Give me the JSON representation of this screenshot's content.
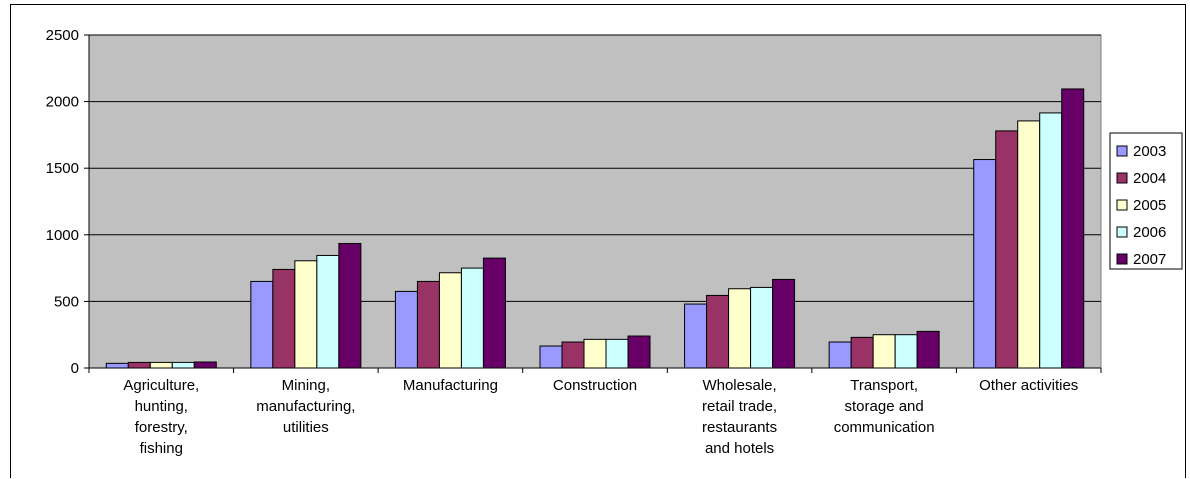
{
  "chart_data": {
    "type": "bar",
    "title": "",
    "xlabel": "",
    "ylabel": "",
    "ylim": [
      0,
      2500
    ],
    "y_ticks": [
      "0",
      "500",
      "1000",
      "1500",
      "2000",
      "2500"
    ],
    "grid": true,
    "legend_position": "right",
    "categories": [
      [
        "Agriculture,",
        "hunting,",
        "forestry,",
        "fishing"
      ],
      [
        "Mining,",
        "manufacturing,",
        "utilities"
      ],
      [
        "Manufacturing"
      ],
      [
        "Construction"
      ],
      [
        "Wholesale,",
        "retail trade,",
        "restaurants",
        "and hotels"
      ],
      [
        "Transport,",
        "storage and",
        "communication"
      ],
      [
        "Other activities"
      ]
    ],
    "series": [
      {
        "name": "2003",
        "color": "#9999ff",
        "values": [
          35,
          650,
          575,
          165,
          480,
          195,
          1565
        ]
      },
      {
        "name": "2004",
        "color": "#993366",
        "values": [
          42,
          740,
          650,
          195,
          545,
          230,
          1780
        ]
      },
      {
        "name": "2005",
        "color": "#ffffcc",
        "values": [
          42,
          805,
          715,
          215,
          595,
          250,
          1855
        ]
      },
      {
        "name": "2006",
        "color": "#ccffff",
        "values": [
          42,
          845,
          750,
          215,
          605,
          250,
          1915
        ]
      },
      {
        "name": "2007",
        "color": "#660066",
        "values": [
          45,
          935,
          825,
          240,
          665,
          275,
          2095
        ]
      }
    ],
    "plot_background": "#c0c0c0"
  }
}
